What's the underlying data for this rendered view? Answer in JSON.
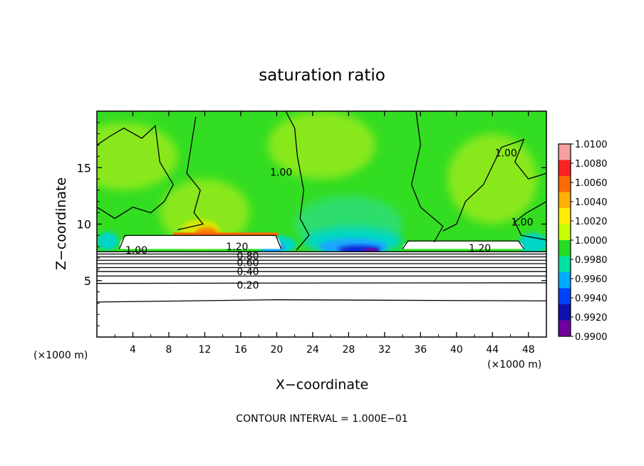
{
  "chart_data": {
    "type": "heatmap",
    "title": "saturation ratio",
    "xlabel": "X−coordinate",
    "ylabel": "Z−coordinate",
    "x_unit_left": "(×1000 m)",
    "x_unit_right": "(×1000 m)",
    "footer": "CONTOUR INTERVAL = 1.000E−01",
    "xlim": [
      0,
      50
    ],
    "ylim": [
      0,
      20
    ],
    "x_ticks": [
      "4",
      "8",
      "12",
      "16",
      "20",
      "24",
      "28",
      "32",
      "36",
      "40",
      "44",
      "48"
    ],
    "y_ticks": [
      "5",
      "10",
      "15"
    ],
    "grid": false,
    "legend_position": "right",
    "colorbar": {
      "labels": [
        "1.0100",
        "1.0080",
        "1.0060",
        "1.0040",
        "1.0020",
        "1.0000",
        "0.9980",
        "0.9960",
        "0.9940",
        "0.9920",
        "0.9900"
      ],
      "colors": [
        "#f7a0a0",
        "#ff2020",
        "#ff6a00",
        "#ffb000",
        "#ffee00",
        "#c8ff00",
        "#22dd22",
        "#00e0a0",
        "#00aaff",
        "#0040ff",
        "#1010b0",
        "#7000a0"
      ]
    },
    "contour_labels": [
      {
        "text": "1.00",
        "x": 20.5,
        "y": 14.6
      },
      {
        "text": "1.00",
        "x": 45.5,
        "y": 16.3
      },
      {
        "text": "1.00",
        "x": 47.3,
        "y": 10.2
      },
      {
        "text": "1.00",
        "x": 4.4,
        "y": 7.7
      },
      {
        "text": "1.20",
        "x": 15.6,
        "y": 8.0
      },
      {
        "text": "1.20",
        "x": 42.6,
        "y": 7.9
      },
      {
        "text": "0.80",
        "x": 16.8,
        "y": 7.2
      },
      {
        "text": "0.60",
        "x": 16.8,
        "y": 6.6
      },
      {
        "text": "0.40",
        "x": 16.8,
        "y": 5.8
      },
      {
        "text": "0.20",
        "x": 16.8,
        "y": 4.6
      }
    ],
    "levels": [
      {
        "name": "green_bg",
        "value": 1.0005,
        "color": "#33dd22"
      },
      {
        "name": "light_green",
        "value": 1.0012,
        "color": "#88e81c"
      },
      {
        "name": "mint",
        "value": 0.9985,
        "color": "#2ede6c"
      },
      {
        "name": "yellow_patch",
        "value": 1.003,
        "color": "#d8e800"
      },
      {
        "name": "orange_patch",
        "value": 1.005,
        "color": "#ff7800"
      },
      {
        "name": "cyan_patch",
        "value": 0.996,
        "color": "#00d6c8"
      },
      {
        "name": "blue_patch",
        "value": 0.994,
        "color": "#1ea6ff"
      },
      {
        "name": "deep_blue",
        "value": 0.992,
        "color": "#1020d0"
      },
      {
        "name": "violet",
        "value": 0.99,
        "color": "#5a10b0"
      }
    ]
  }
}
